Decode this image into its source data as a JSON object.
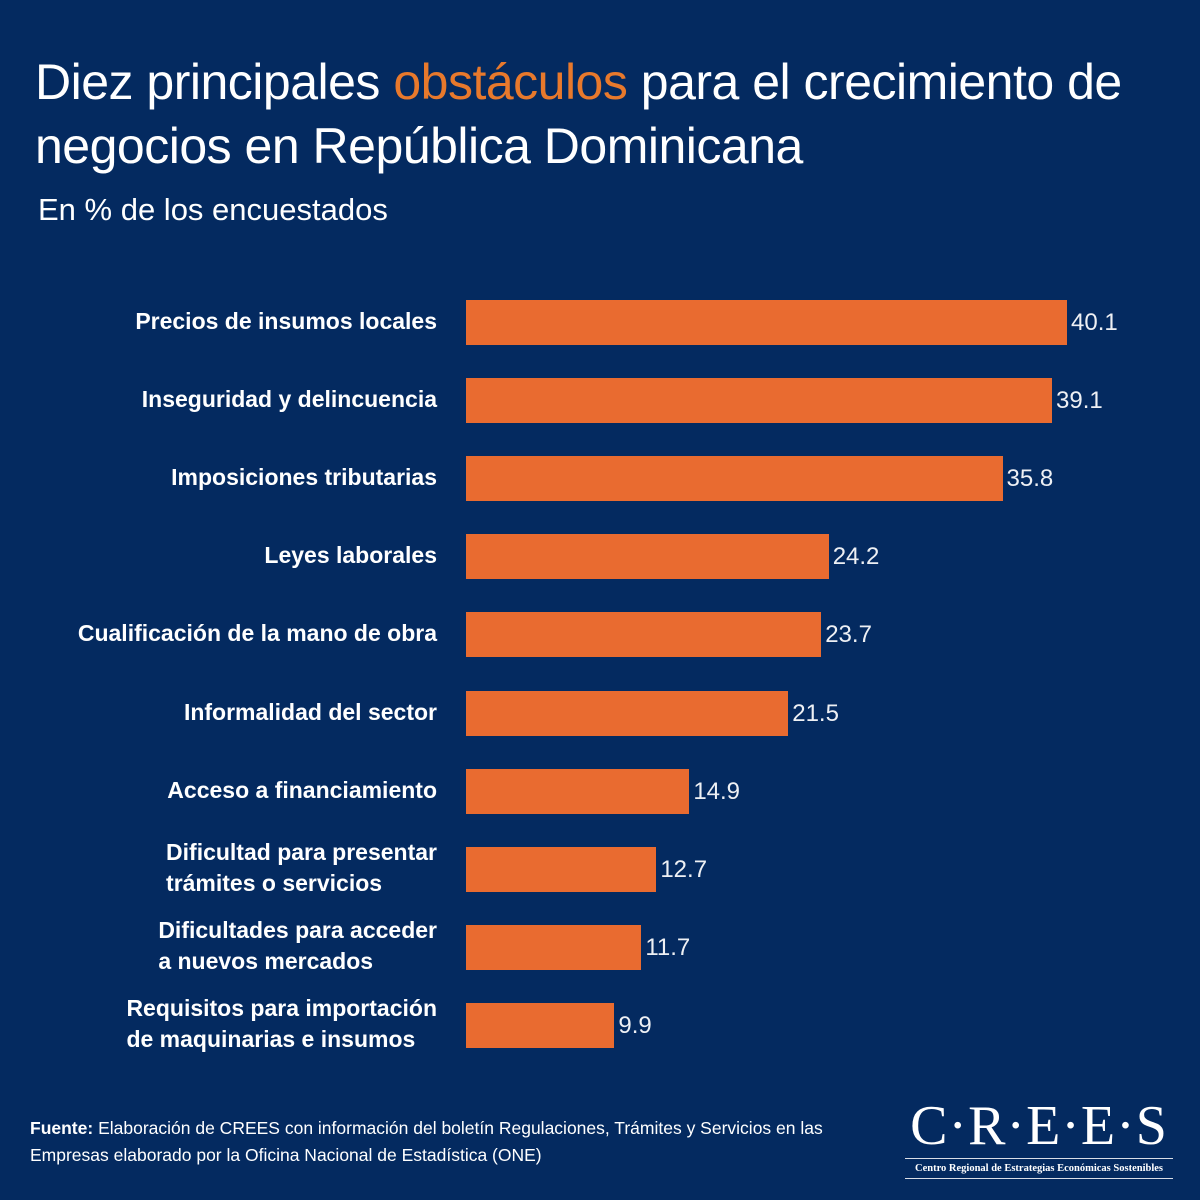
{
  "header": {
    "title_before": "Diez principales ",
    "title_accent": "obstáculos",
    "title_after": " para el crecimiento de negocios en República Dominicana",
    "subtitle": "En % de los encuestados"
  },
  "colors": {
    "background": "#042a60",
    "bar": "#e96b30",
    "accent_text": "#e8792c",
    "text": "#ffffff"
  },
  "chart_data": {
    "type": "bar",
    "orientation": "horizontal",
    "title": "Diez principales obstáculos para el crecimiento de negocios en República Dominicana",
    "subtitle": "En % de los encuestados",
    "xlabel": "",
    "ylabel": "",
    "unit": "%",
    "xlim": [
      0,
      40.1
    ],
    "grid": false,
    "legend": "none",
    "categories": [
      "Precios de insumos locales",
      "Inseguridad y delincuencia",
      "Imposiciones tributarias",
      "Leyes laborales",
      "Cualificación de la mano de obra",
      "Informalidad del sector",
      "Acceso a financiamiento",
      "Dificultad para presentar\ntrámites o servicios",
      "Dificultades para acceder\na nuevos mercados",
      "Requisitos para importación\nde maquinarias e insumos"
    ],
    "values": [
      40.1,
      39.1,
      35.8,
      24.2,
      23.7,
      21.5,
      14.9,
      12.7,
      11.7,
      9.9
    ],
    "value_labels": [
      "40.1",
      "39.1",
      "35.8",
      "24.2",
      "23.7",
      "21.5",
      "14.9",
      "12.7",
      "11.7",
      "9.9"
    ]
  },
  "footer": {
    "source_label": "Fuente:",
    "source_text": " Elaboración de CREES con información del boletín Regulaciones, Trámites y Servicios en las Empresas elaborado por la Oficina Nacional de Estadística (ONE)"
  },
  "logo": {
    "mark": "C·R·E·E·S",
    "subtitle": "Centro Regional de Estrategias Económicas Sostenibles"
  }
}
